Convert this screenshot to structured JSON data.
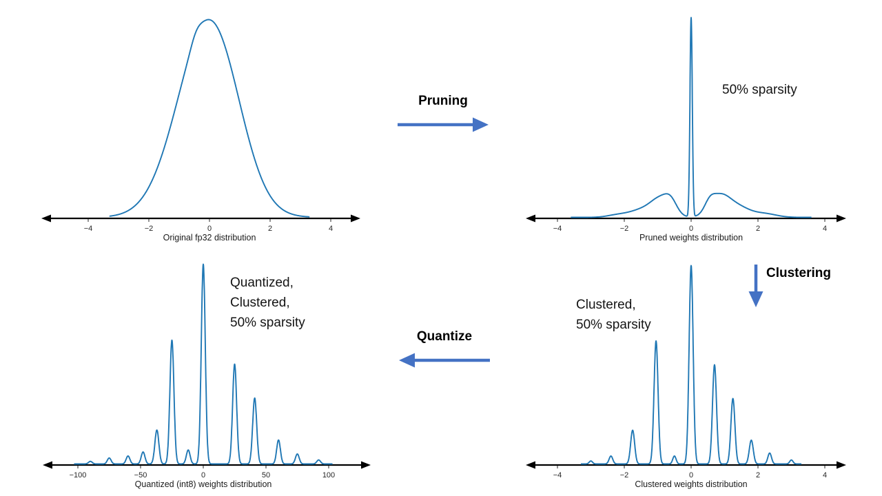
{
  "labels": {
    "pruning": "Pruning",
    "clustering": "Clustering",
    "quantize": "Quantize"
  },
  "annotations": {
    "pruned": "50% sparsity",
    "clustered_lines": [
      "Clustered,",
      "50% sparsity"
    ],
    "quantized_lines": [
      "Quantized,",
      "Clustered,",
      "50% sparsity"
    ]
  },
  "colors": {
    "curve": "#1f77b4",
    "arrow": "#4472c4",
    "axis": "#000000"
  },
  "chart_data": [
    {
      "type": "line",
      "title": "Original fp32 distribution",
      "xlabel": "Original fp32 distribution",
      "xlim": [
        -3.3,
        3.3
      ],
      "ticks": [
        -4,
        -2,
        0,
        2,
        4
      ],
      "tick_labels": [
        "−4",
        "−2",
        "0",
        "2",
        "4"
      ],
      "color": "#1f77b4",
      "components": [
        {
          "mu": -0.15,
          "sigma": 1.0,
          "amp": 0.95
        },
        {
          "mu": 0.4,
          "sigma": 0.8,
          "amp": 0.22
        },
        {
          "mu": -0.45,
          "sigma": 0.16,
          "amp": 0.03
        }
      ]
    },
    {
      "type": "line",
      "title": "Pruned weights distribution",
      "xlabel": "Pruned weights distribution",
      "xlim": [
        -3.6,
        3.6
      ],
      "ticks": [
        -4,
        -2,
        0,
        2,
        4
      ],
      "tick_labels": [
        "−4",
        "−2",
        "0",
        "2",
        "4"
      ],
      "color": "#1f77b4",
      "annotation": "50% sparsity",
      "components": [
        {
          "mu": 0,
          "sigma": 0.035,
          "amp": 1.0
        },
        {
          "mu": -0.6,
          "sigma": 0.18,
          "amp": 0.05
        },
        {
          "mu": -0.9,
          "sigma": 0.3,
          "amp": 0.09
        },
        {
          "mu": -1.5,
          "sigma": 0.35,
          "amp": 0.035
        },
        {
          "mu": -2.2,
          "sigma": 0.3,
          "amp": 0.012
        },
        {
          "mu": 0.55,
          "sigma": 0.15,
          "amp": 0.04
        },
        {
          "mu": 0.85,
          "sigma": 0.3,
          "amp": 0.1
        },
        {
          "mu": 1.4,
          "sigma": 0.35,
          "amp": 0.05
        },
        {
          "mu": 2.2,
          "sigma": 0.35,
          "amp": 0.018
        }
      ]
    },
    {
      "type": "line",
      "title": "Clustered weights distribution",
      "xlabel": "Clustered weights distribution",
      "xlim": [
        -3.3,
        3.3
      ],
      "ticks": [
        -4,
        -2,
        0,
        2,
        4
      ],
      "tick_labels": [
        "−4",
        "−2",
        "0",
        "2",
        "4"
      ],
      "color": "#1f77b4",
      "annotation": "Clustered, 50% sparsity",
      "components": [
        {
          "mu": 0,
          "sigma": 0.06,
          "amp": 1.0
        },
        {
          "mu": -1.05,
          "sigma": 0.06,
          "amp": 0.62
        },
        {
          "mu": -1.75,
          "sigma": 0.06,
          "amp": 0.17
        },
        {
          "mu": -2.4,
          "sigma": 0.055,
          "amp": 0.04
        },
        {
          "mu": -3.0,
          "sigma": 0.05,
          "amp": 0.015
        },
        {
          "mu": -0.5,
          "sigma": 0.05,
          "amp": 0.04
        },
        {
          "mu": 0.7,
          "sigma": 0.06,
          "amp": 0.5
        },
        {
          "mu": 1.25,
          "sigma": 0.06,
          "amp": 0.33
        },
        {
          "mu": 1.8,
          "sigma": 0.06,
          "amp": 0.12
        },
        {
          "mu": 2.35,
          "sigma": 0.055,
          "amp": 0.055
        },
        {
          "mu": 3.0,
          "sigma": 0.05,
          "amp": 0.02
        }
      ]
    },
    {
      "type": "line",
      "title": "Quantized (int8) weights distribution",
      "xlabel": "Quantized (int8) weights distribution",
      "xlim": [
        -103,
        103
      ],
      "ticks": [
        -100,
        -50,
        0,
        50,
        100
      ],
      "tick_labels": [
        "−100",
        "−50",
        "0",
        "50",
        "100"
      ],
      "color": "#1f77b4",
      "annotation": "Quantized, Clustered, 50% sparsity",
      "components": [
        {
          "mu": 0,
          "sigma": 1.6,
          "amp": 1.0
        },
        {
          "mu": -25,
          "sigma": 1.6,
          "amp": 0.62
        },
        {
          "mu": -37,
          "sigma": 1.6,
          "amp": 0.17
        },
        {
          "mu": -48,
          "sigma": 1.5,
          "amp": 0.06
        },
        {
          "mu": -60,
          "sigma": 1.5,
          "amp": 0.04
        },
        {
          "mu": -75,
          "sigma": 1.5,
          "amp": 0.03
        },
        {
          "mu": -90,
          "sigma": 1.5,
          "amp": 0.013
        },
        {
          "mu": -12,
          "sigma": 1.5,
          "amp": 0.07
        },
        {
          "mu": 25,
          "sigma": 1.6,
          "amp": 0.5
        },
        {
          "mu": 41,
          "sigma": 1.6,
          "amp": 0.33
        },
        {
          "mu": 60,
          "sigma": 1.5,
          "amp": 0.12
        },
        {
          "mu": 75,
          "sigma": 1.5,
          "amp": 0.05
        },
        {
          "mu": 92,
          "sigma": 1.5,
          "amp": 0.02
        }
      ]
    }
  ]
}
